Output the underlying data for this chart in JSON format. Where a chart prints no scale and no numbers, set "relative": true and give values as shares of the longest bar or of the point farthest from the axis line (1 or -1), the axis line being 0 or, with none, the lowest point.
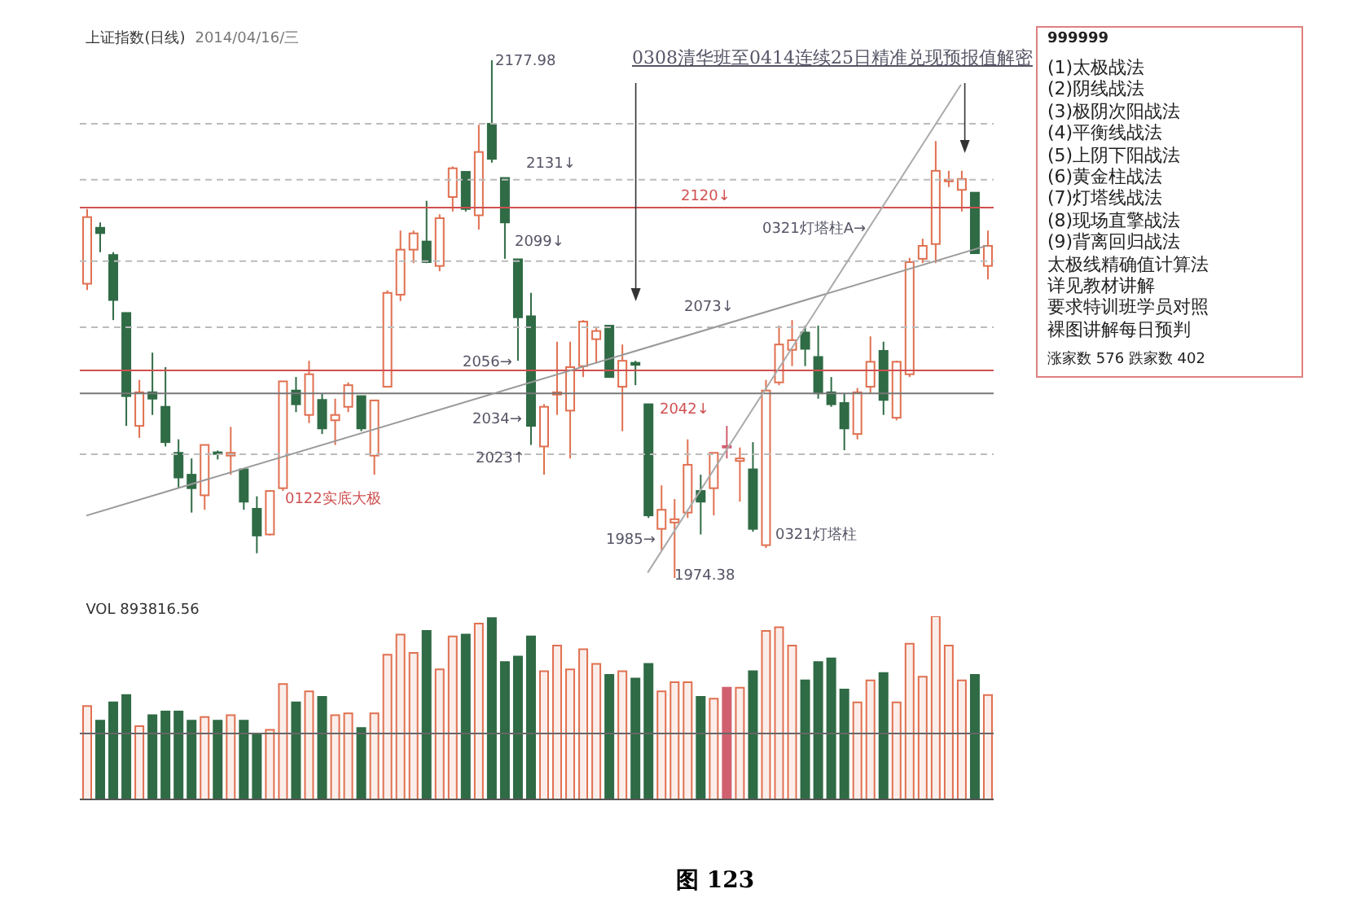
{
  "chart_data": [
    {
      "type": "candlestick",
      "title": "上证指数(日线)",
      "subtitle": "2014/04/16/三",
      "categories": [
        null,
        null,
        null,
        null,
        null,
        null,
        null,
        null,
        null,
        null,
        null,
        null,
        null,
        null,
        null,
        null,
        null,
        null,
        null,
        null,
        null,
        null,
        null,
        null,
        null,
        null,
        null,
        null,
        null,
        null,
        null,
        null,
        null,
        null,
        null,
        null,
        null,
        null,
        null,
        null,
        null,
        null,
        null,
        null,
        null,
        null,
        null,
        null,
        null,
        null,
        null,
        null,
        null,
        null,
        null,
        null,
        null,
        null,
        null,
        null,
        null,
        null,
        null,
        null,
        null,
        null,
        null,
        null,
        null,
        null
      ],
      "ohlc": [
        [
          2090.1,
          2119.5,
          2087.6,
          2116.3
        ],
        [
          2112.1,
          2114.2,
          2102.5,
          2110.0
        ],
        [
          2101.4,
          2102.5,
          2075.8,
          2083.7
        ],
        [
          2078.6,
          2078.6,
          2034.2,
          2045.9
        ],
        [
          2034.2,
          2052.3,
          2029.5,
          2047.4
        ],
        [
          2047.4,
          2063.0,
          2038.5,
          2044.9
        ],
        [
          2041.7,
          2057.3,
          2026.1,
          2027.8
        ],
        [
          2023.6,
          2028.9,
          2009.7,
          2013.9
        ],
        [
          2015.0,
          2021.4,
          2000.1,
          2009.7
        ],
        [
          2006.9,
          2026.7,
          2001.2,
          2026.7
        ],
        [
          2023.8,
          2024.5,
          2021.0,
          2023.4
        ],
        [
          2022.5,
          2033.8,
          2015.0,
          2023.6
        ],
        [
          2017.1,
          2017.1,
          2001.2,
          2004.4
        ],
        [
          2001.6,
          2006.5,
          1984.1,
          1991.1
        ],
        [
          1991.5,
          2008.6,
          1991.1,
          2008.6
        ],
        [
          2009.7,
          2051.7,
          2008.6,
          2051.7
        ],
        [
          2048.1,
          2053.4,
          2039.6,
          2042.7
        ],
        [
          2038.5,
          2059.8,
          2035.3,
          2054.5
        ],
        [
          2044.4,
          2047.0,
          2031.0,
          2033.2
        ],
        [
          2036.4,
          2044.9,
          2026.7,
          2038.5
        ],
        [
          2041.7,
          2051.3,
          2039.6,
          2050.2
        ],
        [
          2045.9,
          2045.9,
          2032.1,
          2033.2
        ],
        [
          2022.5,
          2044.2,
          2015.0,
          2044.2
        ],
        [
          2049.6,
          2087.5,
          2049.6,
          2086.5
        ],
        [
          2085.8,
          2111.0,
          2083.3,
          2103.5
        ],
        [
          2103.5,
          2111.0,
          2098.2,
          2109.9
        ],
        [
          2106.7,
          2122.7,
          2098.2,
          2098.6
        ],
        [
          2097.1,
          2117.4,
          2095.0,
          2115.9
        ],
        [
          2124.2,
          2136.2,
          2118.5,
          2135.5
        ],
        [
          2134.1,
          2134.1,
          2118.5,
          2119.5
        ],
        [
          2117.0,
          2152.6,
          2111.4,
          2141.9
        ],
        [
          2153.0,
          2177.98,
          2137.7,
          2139.2
        ],
        [
          2131.7,
          2131.7,
          2099.9,
          2114.2
        ],
        [
          2099.7,
          2099.7,
          2059.8,
          2076.9
        ],
        [
          2077.3,
          2086.5,
          2026.7,
          2034.2
        ],
        [
          2026.1,
          2042.7,
          2015.0,
          2041.7
        ],
        [
          2046.5,
          2067.3,
          2038.5,
          2047.4
        ],
        [
          2040.2,
          2067.3,
          2021.4,
          2057.3
        ],
        [
          2057.7,
          2075.8,
          2053.4,
          2075.2
        ],
        [
          2068.3,
          2072.6,
          2058.8,
          2071.5
        ],
        [
          2073.6,
          2073.6,
          2053.4,
          2053.4
        ],
        [
          2049.6,
          2066.2,
          2032.1,
          2059.8
        ],
        [
          2059.0,
          2059.8,
          2050.2,
          2058.2
        ],
        [
          2042.7,
          2042.7,
          1998.0,
          1999.0
        ],
        [
          1993.7,
          2010.8,
          1985.2,
          2001.2
        ],
        [
          1996.2,
          2005.4,
          1974.38,
          1997.5
        ],
        [
          2000.1,
          2028.9,
          1998.0,
          2018.9
        ],
        [
          2008.6,
          2015.0,
          1991.5,
          2004.4
        ],
        [
          2009.7,
          2023.6,
          1999.0,
          2023.6
        ],
        [
          2026.3,
          2034.2,
          2021.4,
          2025.8
        ],
        [
          2020.4,
          2025.7,
          2004.4,
          2021.4
        ],
        [
          2017.1,
          2027.8,
          1992.6,
          1993.7
        ],
        [
          1987.3,
          2052.3,
          1986.2,
          2048.1
        ],
        [
          2051.3,
          2073.6,
          2050.2,
          2066.2
        ],
        [
          2064.1,
          2075.8,
          2057.7,
          2067.9
        ],
        [
          2070.9,
          2073.6,
          2057.7,
          2064.5
        ],
        [
          2061.3,
          2073.6,
          2044.9,
          2047.0
        ],
        [
          2047.4,
          2053.4,
          2041.7,
          2042.7
        ],
        [
          2043.2,
          2047.0,
          2024.6,
          2033.2
        ],
        [
          2031.0,
          2049.1,
          2028.9,
          2047.4
        ],
        [
          2049.6,
          2069.4,
          2047.0,
          2059.4
        ],
        [
          2063.7,
          2067.3,
          2038.5,
          2044.4
        ],
        [
          2037.4,
          2059.8,
          2036.4,
          2059.4
        ],
        [
          2054.5,
          2100.3,
          2053.4,
          2098.6
        ],
        [
          2099.9,
          2107.8,
          2098.2,
          2105.0
        ],
        [
          2105.7,
          2146.2,
          2098.2,
          2134.5
        ],
        [
          2130.4,
          2134.5,
          2128.1,
          2131.0
        ],
        [
          2127.0,
          2134.5,
          2118.5,
          2131.3
        ],
        [
          2125.9,
          2125.9,
          2102.1,
          2102.1
        ],
        [
          2097.1,
          2111.0,
          2091.8,
          2105.0
        ]
      ],
      "colors": [
        "#e07050",
        "#2f6b45",
        "#2f6b45",
        "#2f6b45",
        "#e07050",
        "#2f6b45",
        "#2f6b45",
        "#2f6b45",
        "#2f6b45",
        "#e07050",
        "#2f6b45",
        "#e07050",
        "#2f6b45",
        "#2f6b45",
        "#e07050",
        "#e07050",
        "#2f6b45",
        "#e07050",
        "#2f6b45",
        "#e07050",
        "#e07050",
        "#2f6b45",
        "#e07050",
        "#e07050",
        "#e07050",
        "#e07050",
        "#2f6b45",
        "#e07050",
        "#e07050",
        "#2f6b45",
        "#e07050",
        "#2f6b45",
        "#2f6b45",
        "#2f6b45",
        "#2f6b45",
        "#e07050",
        "#e07050",
        "#e07050",
        "#e07050",
        "#e07050",
        "#2f6b45",
        "#e07050",
        "#2f6b45",
        "#2f6b45",
        "#e07050",
        "#e07050",
        "#e07050",
        "#2f6b45",
        "#e07050",
        "#d06070",
        "#e07050",
        "#2f6b45",
        "#e07050",
        "#e07050",
        "#e07050",
        "#2f6b45",
        "#2f6b45",
        "#2f6b45",
        "#2f6b45",
        "#e07050",
        "#e07050",
        "#2f6b45",
        "#e07050",
        "#e07050",
        "#e07050",
        "#e07050",
        "#e07050",
        "#e07050",
        "#2f6b45",
        "#e07050"
      ],
      "series": [
        {
          "type": "line",
          "values": [
            1998.9,
            null,
            null,
            null,
            null,
            null,
            null,
            null,
            null,
            null,
            null,
            null,
            null,
            null,
            null,
            null,
            null,
            null,
            null,
            null,
            null,
            null,
            null,
            null,
            null,
            null,
            null,
            null,
            null,
            null,
            null,
            null,
            null,
            null,
            null,
            null,
            null,
            null,
            null,
            null,
            null,
            null,
            null,
            null,
            null,
            null,
            null,
            null,
            null,
            null,
            null,
            null,
            null,
            null,
            null,
            null,
            null,
            null,
            null,
            null,
            null,
            null,
            null,
            null,
            null,
            null,
            null,
            null,
            null,
            2105.1
          ],
          "color": "#999999"
        },
        {
          "type": "line",
          "values": [
            null,
            null,
            null,
            null,
            null,
            null,
            null,
            null,
            null,
            null,
            null,
            null,
            null,
            null,
            null,
            null,
            null,
            null,
            null,
            null,
            null,
            null,
            null,
            null,
            null,
            null,
            null,
            null,
            null,
            null,
            null,
            null,
            null,
            null,
            null,
            null,
            null,
            null,
            null,
            null,
            null,
            null,
            null,
            1976.5,
            null,
            null,
            null,
            null,
            null,
            null,
            null,
            null,
            null,
            null,
            null,
            null,
            null,
            null,
            null,
            null,
            null,
            null,
            null,
            null,
            null,
            null,
            null,
            2168.4,
            null,
            null
          ],
          "color": "#aaaaaa"
        }
      ],
      "ref_lines": [
        {
          "axis": "y",
          "value": 2153,
          "color": "#bbbbbb",
          "line_style": "dashed"
        },
        {
          "axis": "y",
          "value": 2131,
          "color": "#bbbbbb",
          "line_style": "dashed"
        },
        {
          "axis": "y",
          "value": 2120,
          "color": "#d05050",
          "line_style": "solid"
        },
        {
          "axis": "y",
          "value": 2099,
          "color": "#bbbbbb",
          "line_style": "dashed"
        },
        {
          "axis": "y",
          "value": 2073,
          "color": "#bbbbbb",
          "line_style": "dashed"
        },
        {
          "axis": "y",
          "value": 2056,
          "color": "#d05050",
          "line_style": "solid"
        },
        {
          "axis": "y",
          "value": 2047,
          "color": "#777777",
          "line_style": "solid"
        },
        {
          "axis": "y",
          "value": 2023,
          "color": "#bbbbbb",
          "line_style": "dashed"
        }
      ],
      "annotations": [
        "0308清华班至0414连续25日精准兑现预报值解密",
        "2177.98",
        "2131↓",
        "2120↓",
        "0321灯塔柱A→",
        "2099↓",
        "2073↓",
        "2056→",
        "2042↓",
        "2034→",
        "2023↑",
        "0122实底大极",
        "1985→",
        "0321灯塔柱",
        "1974.38"
      ],
      "grid": false,
      "tick_labels": false
    },
    {
      "type": "bar",
      "title": "VOL 893816.56",
      "relative": true,
      "categories": [
        null,
        null,
        null,
        null,
        null,
        null,
        null,
        null,
        null,
        null,
        null,
        null,
        null,
        null,
        null,
        null,
        null,
        null,
        null,
        null,
        null,
        null,
        null,
        null,
        null,
        null,
        null,
        null,
        null,
        null,
        null,
        null,
        null,
        null,
        null,
        null,
        null,
        null,
        null,
        null,
        null,
        null,
        null,
        null,
        null,
        null,
        null,
        null,
        null,
        null,
        null,
        null,
        null,
        null,
        null,
        null,
        null,
        null,
        null,
        null,
        null,
        null,
        null,
        null,
        null,
        null,
        null,
        null,
        null,
        null
      ],
      "values": [
        0.51,
        0.43,
        0.53,
        0.57,
        0.4,
        0.46,
        0.48,
        0.48,
        0.43,
        0.45,
        0.43,
        0.46,
        0.43,
        0.36,
        0.38,
        0.63,
        0.53,
        0.59,
        0.56,
        0.46,
        0.47,
        0.39,
        0.47,
        0.79,
        0.9,
        0.8,
        0.92,
        0.71,
        0.89,
        0.9,
        0.96,
        0.99,
        0.75,
        0.78,
        0.89,
        0.7,
        0.84,
        0.71,
        0.82,
        0.74,
        0.68,
        0.7,
        0.66,
        0.74,
        0.59,
        0.64,
        0.64,
        0.56,
        0.55,
        0.61,
        0.61,
        0.7,
        0.92,
        0.94,
        0.84,
        0.65,
        0.75,
        0.77,
        0.6,
        0.53,
        0.65,
        0.69,
        0.53,
        0.85,
        0.67,
        1,
        0.84,
        0.65,
        0.68,
        0.57
      ],
      "colors": [
        "#e07050",
        "#2f6b45",
        "#2f6b45",
        "#2f6b45",
        "#e07050",
        "#2f6b45",
        "#2f6b45",
        "#2f6b45",
        "#2f6b45",
        "#e07050",
        "#2f6b45",
        "#e07050",
        "#2f6b45",
        "#2f6b45",
        "#e07050",
        "#e07050",
        "#2f6b45",
        "#e07050",
        "#2f6b45",
        "#e07050",
        "#e07050",
        "#2f6b45",
        "#e07050",
        "#e07050",
        "#e07050",
        "#e07050",
        "#2f6b45",
        "#e07050",
        "#e07050",
        "#2f6b45",
        "#e07050",
        "#2f6b45",
        "#2f6b45",
        "#2f6b45",
        "#2f6b45",
        "#e07050",
        "#e07050",
        "#e07050",
        "#e07050",
        "#e07050",
        "#2f6b45",
        "#e07050",
        "#2f6b45",
        "#2f6b45",
        "#e07050",
        "#e07050",
        "#e07050",
        "#2f6b45",
        "#e07050",
        "#d06070",
        "#e07050",
        "#2f6b45",
        "#e07050",
        "#e07050",
        "#e07050",
        "#2f6b45",
        "#2f6b45",
        "#2f6b45",
        "#2f6b45",
        "#e07050",
        "#e07050",
        "#2f6b45",
        "#e07050",
        "#e07050",
        "#e07050",
        "#e07050",
        "#e07050",
        "#e07050",
        "#2f6b45",
        "#e07050"
      ],
      "ref_lines": [
        {
          "axis": "y",
          "value": 0.36,
          "color": "#666666",
          "line_style": "solid"
        }
      ],
      "annotations": [
        "图 123"
      ],
      "grid": false,
      "tick_labels": false
    },
    {
      "type": "other",
      "title": "999999",
      "annotations": [
        "(1)太极战法",
        "(2)阴线战法",
        "(3)极阴次阳战法",
        "(4)平衡线战法",
        "(5)上阴下阳战法",
        "(6)黄金柱战法",
        "(7)灯塔线战法",
        "(8)现场直擎战法",
        "(9)背离回归战法",
        "太极线精确值计算法",
        "详见教材讲解",
        "要求特训班学员对照",
        "裸图讲解每日预判",
        "涨家数 576 跌家数 402"
      ]
    }
  ]
}
